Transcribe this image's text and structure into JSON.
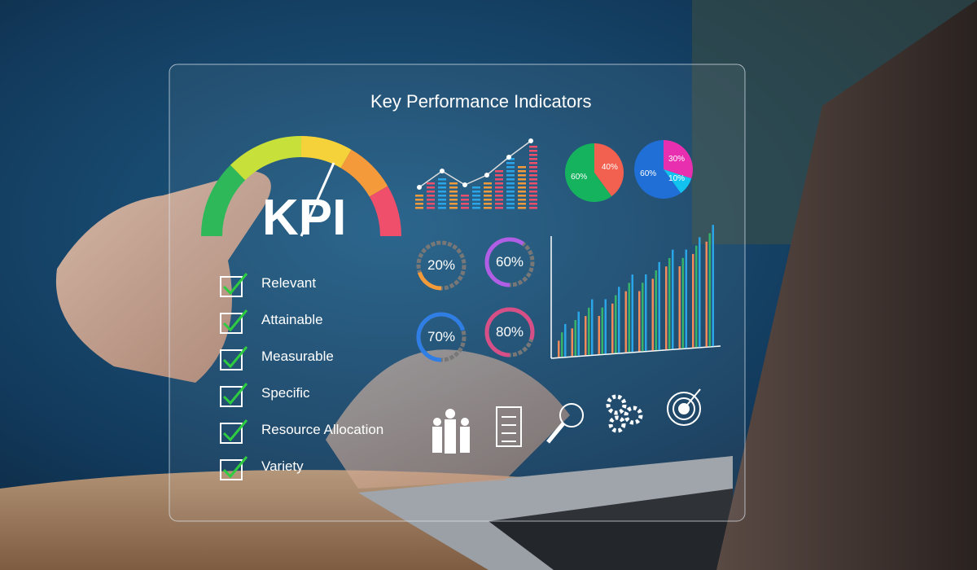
{
  "panel": {
    "title": "Key Performance Indicators",
    "gauge_label": "KPI",
    "checklist": [
      {
        "label": "Relevant",
        "checked": true
      },
      {
        "label": "Attainable",
        "checked": true
      },
      {
        "label": "Measurable",
        "checked": true
      },
      {
        "label": "Specific",
        "checked": true
      },
      {
        "label": "Resource Allocation",
        "checked": true
      },
      {
        "label": "Variety",
        "checked": true
      }
    ],
    "pie_1": [
      {
        "label": "40%",
        "value": 40,
        "color": "#f2604f"
      },
      {
        "label": "60%",
        "value": 60,
        "color": "#16b35e"
      }
    ],
    "pie_2": [
      {
        "label": "30%",
        "value": 30,
        "color": "#e82fb0"
      },
      {
        "label": "10%",
        "value": 10,
        "color": "#12c3f0"
      },
      {
        "label": "60%",
        "value": 60,
        "color": "#1f6fd6"
      }
    ],
    "rings": [
      {
        "label": "20%",
        "value": 20,
        "color": "#f39a3a"
      },
      {
        "label": "60%",
        "value": 60,
        "color": "#b05ee6"
      },
      {
        "label": "70%",
        "value": 70,
        "color": "#2f7ee6"
      },
      {
        "label": "80%",
        "value": 80,
        "color": "#d64f87"
      }
    ],
    "icons": [
      "team-icon",
      "clipboard-icon",
      "magnifier-chart-icon",
      "gears-icon",
      "target-icon"
    ]
  }
}
